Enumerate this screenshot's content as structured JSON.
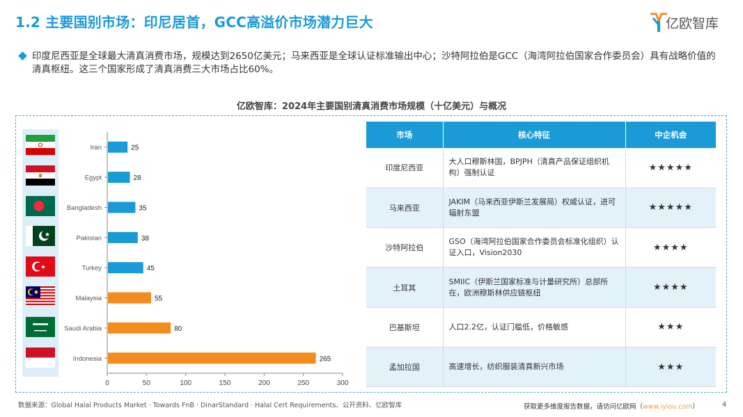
{
  "header": {
    "title": "1.2 主要国别市场：印尼居首，GCC高溢价市场潜力巨大",
    "logo_text": "亿欧智库"
  },
  "bullet": {
    "text": "印度尼西亚是全球最大清真消费市场，规模达到2650亿美元；马来西亚是全球认证标准输出中心；沙特阿拉伯是GCC（海湾阿拉伯国家合作委员会）具有战略价值的清真枢纽。这三个国家形成了清真消费三大市场占比60%。"
  },
  "chart_title": "亿欧智库：2024年主要国别清真消费市场规模（十亿美元）与概况",
  "chart_data": {
    "type": "bar",
    "orientation": "horizontal",
    "categories": [
      "Iran",
      "Egypt",
      "Bangladesh",
      "Pakistan",
      "Turkey",
      "Malaysia",
      "Saudi Arabia",
      "Indonesia"
    ],
    "values": [
      25,
      28,
      35,
      38,
      45,
      55,
      80,
      265
    ],
    "bar_colors": [
      "#1a9ad6",
      "#1a9ad6",
      "#1a9ad6",
      "#1a9ad6",
      "#1a9ad6",
      "#f28c1e",
      "#f28c1e",
      "#f28c1e"
    ],
    "xlim": [
      0,
      300
    ],
    "xticks": [
      0,
      50,
      100,
      150,
      200,
      250,
      300
    ],
    "data_labels": true,
    "grid": false
  },
  "flags": [
    "iran",
    "egypt",
    "bangladesh",
    "pakistan",
    "turkey",
    "malaysia",
    "saudi-arabia",
    "indonesia"
  ],
  "table": {
    "headers": [
      "市场",
      "核心特征",
      "中企机会"
    ],
    "rows": [
      {
        "market": "印度尼西亚",
        "feature": "大人口穆斯林国，BPJPH（清真产品保证组织机构）强制认证",
        "opportunity": "★★★★★"
      },
      {
        "market": "马来西亚",
        "feature": "JAKIM（马来西亚伊斯兰发展局）权威认证，进可辐射东盟",
        "opportunity": "★★★★★"
      },
      {
        "market": "沙特阿拉伯",
        "feature": "GSO（海湾阿拉伯国家合作委员会标准化组织）认证入口，Vision2030",
        "opportunity": "★★★★"
      },
      {
        "market": "土耳其",
        "feature": "SMIIC（伊斯兰国家标准与计量研究所）总部所在，欧洲穆斯林供应链枢纽",
        "opportunity": "★★★★"
      },
      {
        "market": "巴基斯坦",
        "feature": "人口2.2亿，认证门槛低，价格敏感",
        "opportunity": "★★★"
      },
      {
        "market": "孟加拉国",
        "feature": "高速增长，纺织服装清真新兴市场",
        "opportunity": "★★★"
      }
    ]
  },
  "footer": {
    "source": "数据来源：Global Halal Products Market · Towards FnB · DinarStandard · Halal Cert Requirements、公开资料、亿欧智库",
    "visit_text": "获取更多维度报告数据，请访问亿欧网（",
    "url": "www.iyiou.com",
    "visit_close": "）",
    "page_number": "4"
  },
  "colors": {
    "accent": "#1a9ad6",
    "highlight_bar": "#f28c1e",
    "table_alt_row": "#e3f1f9"
  }
}
